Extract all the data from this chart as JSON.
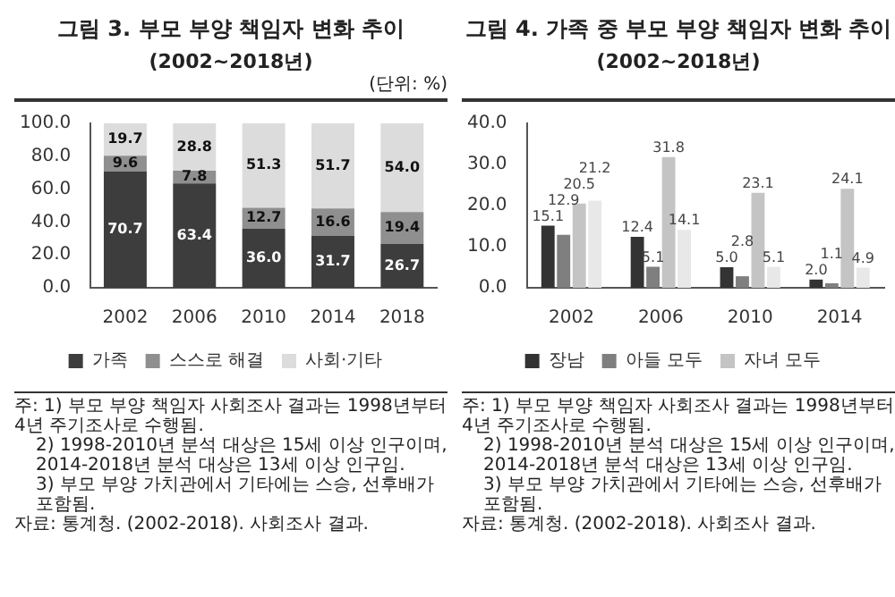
{
  "chart_data": [
    {
      "type": "bar",
      "title": "그림 3. 부모 부양 책임자 변화 추이",
      "subtitle": "(2002~2018년)",
      "categories": [
        "2002",
        "2006",
        "2010",
        "2014",
        "2018"
      ],
      "stacked": true,
      "series": [
        {
          "name": "가족",
          "color": "#3d3d3d",
          "values": [
            70.7,
            63.4,
            36.0,
            31.7,
            26.7
          ],
          "value_labels": [
            "70.7",
            "63.4",
            "36.0",
            "31.7",
            "26.7"
          ]
        },
        {
          "name": "스스로 해결",
          "color": "#8f8f8f",
          "values": [
            9.6,
            7.8,
            12.7,
            16.6,
            19.4
          ],
          "value_labels": [
            "9.6",
            "7.8",
            "12.7",
            "16.6",
            "19.4"
          ]
        },
        {
          "name": "사회·기타",
          "color": "#dcdcdc",
          "values": [
            19.7,
            28.8,
            51.3,
            51.7,
            54.0
          ],
          "value_labels": [
            "19.7",
            "28.8",
            "51.3",
            "51.7",
            "54.0"
          ]
        }
      ],
      "ylim": [
        0,
        100
      ],
      "yticks": [
        {
          "value": 0,
          "label": "0.0"
        },
        {
          "value": 20,
          "label": "20.0"
        },
        {
          "value": 40,
          "label": "40.0"
        },
        {
          "value": 60,
          "label": "60.0"
        },
        {
          "value": 80,
          "label": "80.0"
        },
        {
          "value": 100,
          "label": "100.0"
        }
      ],
      "grid": false,
      "legend": "bottom",
      "annotations": [
        "(단위: %)",
        "주: 1) 부모 부양 책임자 사회조사 결과는 1998년부터 4년 주기조사로 수행됨.",
        "2) 1998-2010년 분석 대상은 15세 이상 인구이며, 2014-2018년 분석 대상은 13세 이상 인구임.",
        "3) 부모 부양 가치관에서 기타에는 스승, 선후배가 포함됨.",
        "자료: 통계청. (2002-2018). 사회조사 결과."
      ]
    },
    {
      "type": "bar",
      "title": "그림 4. 가족 중 부모 부양 책임자 변화 추이",
      "subtitle": "(2002~2018년)",
      "categories": [
        "2002",
        "2006",
        "2010",
        "2014"
      ],
      "series": [
        {
          "name": "장남",
          "color": "#333333",
          "values": [
            15.1,
            12.4,
            5.0,
            2.0
          ],
          "value_labels": [
            "15.1",
            "12.4",
            "5.0",
            "2.0"
          ]
        },
        {
          "name": "아들 모두",
          "color": "#7f7f7f",
          "values": [
            12.9,
            5.1,
            2.8,
            1.1
          ],
          "value_labels": [
            "12.9",
            "5.1",
            "2.8",
            "1.1"
          ]
        },
        {
          "name": "자녀 모두",
          "color": "#c4c4c4",
          "values": [
            20.5,
            31.8,
            23.1,
            24.1
          ],
          "value_labels": [
            "20.5",
            "31.8",
            "23.1",
            "24.1"
          ]
        },
        {
          "color": "#e8e8e8",
          "values": [
            21.2,
            14.1,
            5.1,
            4.9
          ],
          "value_labels": [
            "21.2",
            "14.1",
            "5.1",
            "4.9"
          ]
        }
      ],
      "ylim": [
        0,
        40
      ],
      "yticks": [
        {
          "value": 0,
          "label": "0.0"
        },
        {
          "value": 10,
          "label": "10.0"
        },
        {
          "value": 20,
          "label": "20.0"
        },
        {
          "value": 30,
          "label": "30.0"
        },
        {
          "value": 40,
          "label": "40.0"
        }
      ],
      "grid": false,
      "legend": "bottom",
      "annotations": [
        "주: 1) 부모 부양 책임자 사회조사 결과는 1998년부터 4년 주기조사로 수행됨.",
        "2) 1998-2010년 분석 대상은 15세 이상 인구이며, 2014-2018년 분석 대상은 13세 이상 인구임.",
        "3) 부모 부양 가치관에서 기타에는 스승, 선후배가 포함됨.",
        "자료: 통계청. (2002-2018). 사회조사 결과."
      ]
    }
  ]
}
